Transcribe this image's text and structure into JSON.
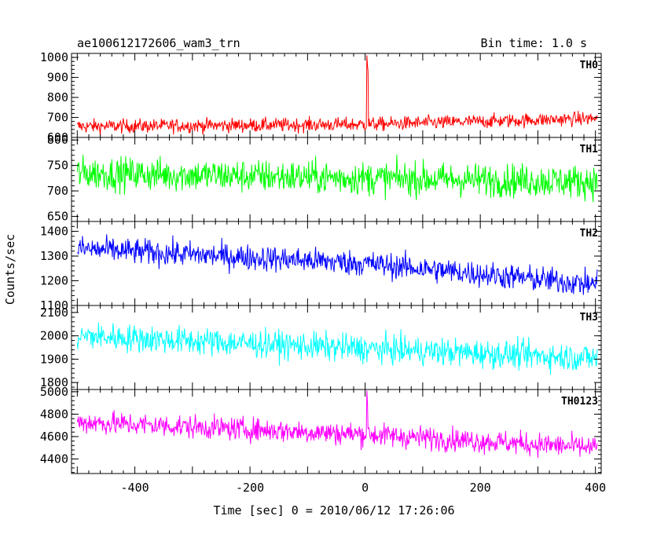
{
  "header": {
    "left_title": "ae100612172606_wam3_trn",
    "right_title": "Bin time: 1.0 s"
  },
  "chart_data": [
    {
      "type": "line",
      "title": "TH0",
      "color": "#ff0000",
      "ylim": [
        600,
        1020
      ],
      "yticks": [
        600,
        700,
        800,
        900,
        1000
      ],
      "baseline": [
        [
          -500,
          655
        ],
        [
          0,
          665
        ],
        [
          400,
          695
        ]
      ],
      "noise_amplitude": 32,
      "spikes": [
        {
          "x": 3,
          "y": 1010
        },
        {
          "x": 4,
          "y": 960
        },
        {
          "x": 5,
          "y": 930
        }
      ],
      "xlim": [
        -510,
        410
      ]
    },
    {
      "type": "line",
      "title": "TH1",
      "color": "#00ff00",
      "ylim": [
        640,
        805
      ],
      "yticks": [
        650,
        700,
        750,
        800
      ],
      "baseline": [
        [
          -500,
          735
        ],
        [
          0,
          725
        ],
        [
          400,
          718
        ]
      ],
      "noise_amplitude": 30,
      "spikes": [],
      "xlim": [
        -510,
        410
      ]
    },
    {
      "type": "line",
      "title": "TH2",
      "color": "#0000ff",
      "ylim": [
        1100,
        1440
      ],
      "yticks": [
        1100,
        1200,
        1300,
        1400
      ],
      "baseline": [
        [
          -500,
          1330
        ],
        [
          0,
          1270
        ],
        [
          400,
          1185
        ]
      ],
      "noise_amplitude": 48,
      "spikes": [],
      "xlim": [
        -510,
        410
      ]
    },
    {
      "type": "line",
      "title": "TH3",
      "color": "#00ffff",
      "ylim": [
        1770,
        2130
      ],
      "yticks": [
        1800,
        1900,
        2000,
        2100
      ],
      "baseline": [
        [
          -500,
          2000
        ],
        [
          0,
          1945
        ],
        [
          400,
          1905
        ]
      ],
      "noise_amplitude": 55,
      "spikes": [],
      "xlim": [
        -510,
        410
      ]
    },
    {
      "type": "line",
      "title": "TH0123",
      "color": "#ff00ff",
      "ylim": [
        4270,
        5020
      ],
      "yticks": [
        4400,
        4600,
        4800,
        5000
      ],
      "baseline": [
        [
          -500,
          4730
        ],
        [
          0,
          4620
        ],
        [
          400,
          4500
        ]
      ],
      "noise_amplitude": 95,
      "spikes": [
        {
          "x": 3,
          "y": 5010
        },
        {
          "x": 4,
          "y": 4900
        }
      ],
      "xlim": [
        -510,
        410
      ]
    }
  ],
  "x_axis": {
    "ticks": [
      -400,
      -200,
      0,
      200,
      400
    ],
    "label": "Time [sec] 0 = 2010/06/12 17:26:06"
  },
  "y_axis": {
    "label": "Counts/sec"
  }
}
